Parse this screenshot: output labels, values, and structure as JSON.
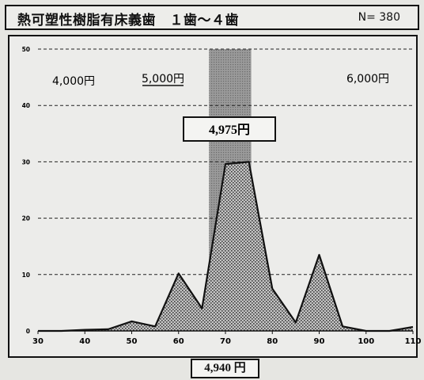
{
  "header": {
    "title": "熱可塑性樹脂有床義歯　１歯～４歯",
    "n_label": "N= 380"
  },
  "chart_data": {
    "type": "area",
    "x": [
      30,
      35,
      40,
      45,
      50,
      55,
      60,
      65,
      70,
      75,
      80,
      85,
      90,
      95,
      100,
      105,
      110
    ],
    "values": [
      0,
      0,
      0.2,
      0.3,
      1.7,
      0.8,
      10.2,
      4,
      29.6,
      30,
      7.5,
      1.5,
      13.5,
      0.8,
      0,
      0,
      0.7
    ],
    "xlim": [
      30,
      110
    ],
    "ylim": [
      0,
      50
    ],
    "x_ticks": [
      "30",
      "40",
      "50",
      "60",
      "70",
      "80",
      "90",
      "100",
      "110"
    ],
    "y_ticks": [
      "0",
      "10",
      "20",
      "30",
      "40",
      "50"
    ],
    "highlight_band": [
      66.5,
      75.5
    ],
    "grid": "horizontal dashed",
    "price_labels": [
      {
        "text": "4,000円",
        "underline": false
      },
      {
        "text": "5,000円",
        "underline": true
      },
      {
        "text": "6,000円",
        "underline": false
      }
    ],
    "mean_label": "4,975円",
    "bottom_label": "4,940 円"
  }
}
